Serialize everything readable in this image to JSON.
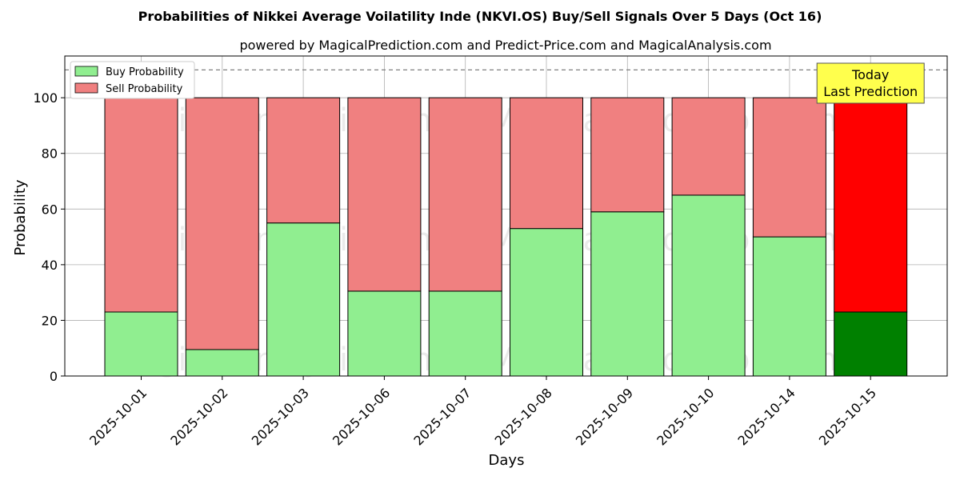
{
  "chart_data": {
    "type": "bar",
    "stacked": true,
    "title": "Probabilities of Nikkei Average Voilatility Inde (NKVI.OS) Buy/Sell Signals Over 5 Days (Oct 16)",
    "subtitle": "powered by MagicalPrediction.com and Predict-Price.com and MagicalAnalysis.com",
    "xlabel": "Days",
    "ylabel": "Probability",
    "ylim": [
      0,
      115
    ],
    "yticks": [
      0,
      20,
      40,
      60,
      80,
      100
    ],
    "reference_line": 110,
    "grid": true,
    "legend_position": "top-left",
    "categories": [
      "2025-10-01",
      "2025-10-02",
      "2025-10-03",
      "2025-10-06",
      "2025-10-07",
      "2025-10-08",
      "2025-10-09",
      "2025-10-10",
      "2025-10-14",
      "2025-10-15"
    ],
    "series": [
      {
        "name": "Buy Probability",
        "values": [
          23,
          9.5,
          55,
          30.5,
          30.5,
          53,
          59,
          65,
          50,
          23
        ]
      },
      {
        "name": "Sell Probability",
        "values": [
          77,
          90.5,
          45,
          69.5,
          69.5,
          47,
          41,
          35,
          50,
          77
        ]
      }
    ],
    "colors": {
      "buy": "#90ee90",
      "sell": "#f08080",
      "buy_highlight": "#008000",
      "sell_highlight": "#ff0000",
      "annotation_bg": "#ffff4d"
    },
    "annotation": {
      "line1": "Today",
      "line2": "Last Prediction",
      "category_index": 9
    },
    "watermarks": [
      "MagicalAnalysis.com",
      "MagicalPrediction.com"
    ]
  }
}
